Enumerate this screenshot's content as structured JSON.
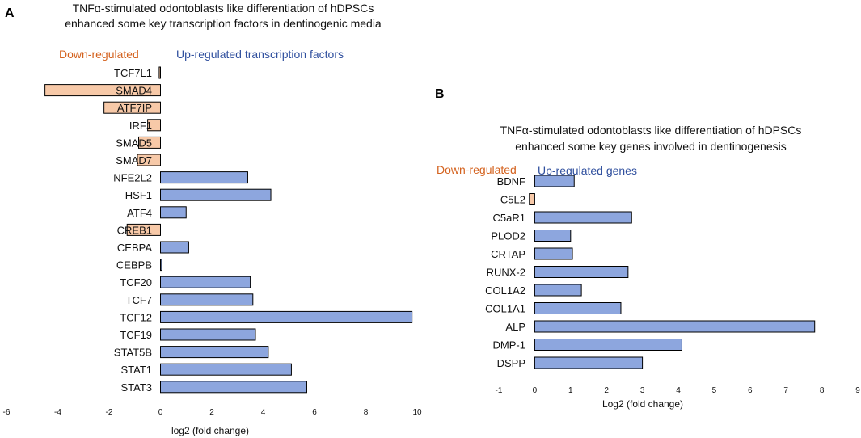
{
  "colors": {
    "up": "#8da6de",
    "down": "#f7c9a8",
    "stroke": "#000000",
    "legend_down": "#d4621e",
    "legend_up": "#2f4f9e"
  },
  "chart_data": [
    {
      "type": "bar",
      "orientation": "horizontal",
      "panel": "A",
      "title_line1": "TNFα-stimulated odontoblasts like differentiation of hDPSCs",
      "title_line2": "enhanced some key transcription factors in dentinogenic media",
      "legend_down": "Down-regulated",
      "legend_up": "Up-regulated transcription factors",
      "xlabel": "log2 (fold change)",
      "xlim": [
        -6,
        10
      ],
      "xticks": [
        "-6",
        "-4",
        "-2",
        "0",
        "2",
        "4",
        "6",
        "8",
        "10"
      ],
      "categories": [
        "TCF7L1",
        "SMAD4",
        "ATF7IP",
        "IRF1",
        "SMAD5",
        "SMAD7",
        "NFE2L2",
        "HSF1",
        "ATF4",
        "CREB1",
        "CEBPA",
        "CEBPB",
        "TCF20",
        "TCF7",
        "TCF12",
        "TCF19",
        "STAT5B",
        "STAT1",
        "STAT3"
      ],
      "values": [
        -0.05,
        -4.5,
        -2.2,
        -0.5,
        -0.85,
        -0.9,
        3.4,
        4.3,
        1.0,
        -1.3,
        1.1,
        0.05,
        3.5,
        3.6,
        9.8,
        3.7,
        4.2,
        5.1,
        5.7
      ]
    },
    {
      "type": "bar",
      "orientation": "horizontal",
      "panel": "B",
      "title_line1": "TNFα-stimulated odontoblasts like differentiation of hDPSCs",
      "title_line2": "enhanced some key genes involved in dentinogenesis",
      "legend_down": "Down-regulated",
      "legend_up": "Up-regulated genes",
      "xlabel": "Log2 (fold change)",
      "xlim": [
        -1,
        9
      ],
      "xticks": [
        "-1",
        "0",
        "1",
        "2",
        "3",
        "4",
        "5",
        "6",
        "7",
        "8",
        "9"
      ],
      "categories": [
        "BDNF",
        "C5L2",
        "C5aR1",
        "PLOD2",
        "CRTAP",
        "RUNX-2",
        "COL1A2",
        "COL1A1",
        "ALP",
        "DMP-1",
        "DSPP"
      ],
      "values": [
        1.1,
        -0.15,
        2.7,
        1.0,
        1.05,
        2.6,
        1.3,
        2.4,
        7.8,
        4.1,
        3.0
      ]
    }
  ]
}
